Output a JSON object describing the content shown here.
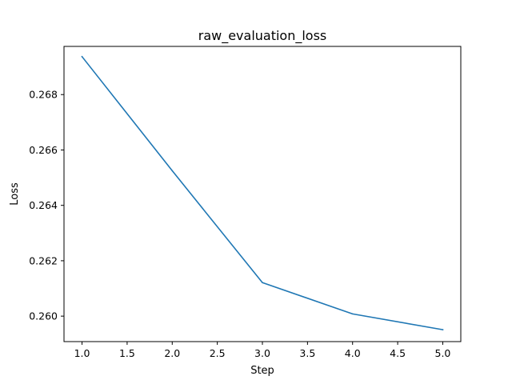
{
  "chart_data": {
    "type": "line",
    "title": "raw_evaluation_loss",
    "xlabel": "Step",
    "ylabel": "Loss",
    "xlim": [
      0.8,
      5.2
    ],
    "ylim": [
      0.25908,
      0.26974
    ],
    "x_ticks": [
      1.0,
      1.5,
      2.0,
      2.5,
      3.0,
      3.5,
      4.0,
      4.5,
      5.0
    ],
    "x_tick_labels": [
      "1.0",
      "1.5",
      "2.0",
      "2.5",
      "3.0",
      "3.5",
      "4.0",
      "4.5",
      "5.0"
    ],
    "y_ticks": [
      0.26,
      0.262,
      0.264,
      0.266,
      0.268
    ],
    "y_tick_labels": [
      "0.260",
      "0.262",
      "0.264",
      "0.266",
      "0.268"
    ],
    "grid": false,
    "series": [
      {
        "x": [
          1,
          2,
          3,
          4,
          5
        ],
        "values": [
          0.26937,
          0.26525,
          0.26121,
          0.26008,
          0.25951
        ],
        "color": "#1f77b4"
      }
    ]
  }
}
